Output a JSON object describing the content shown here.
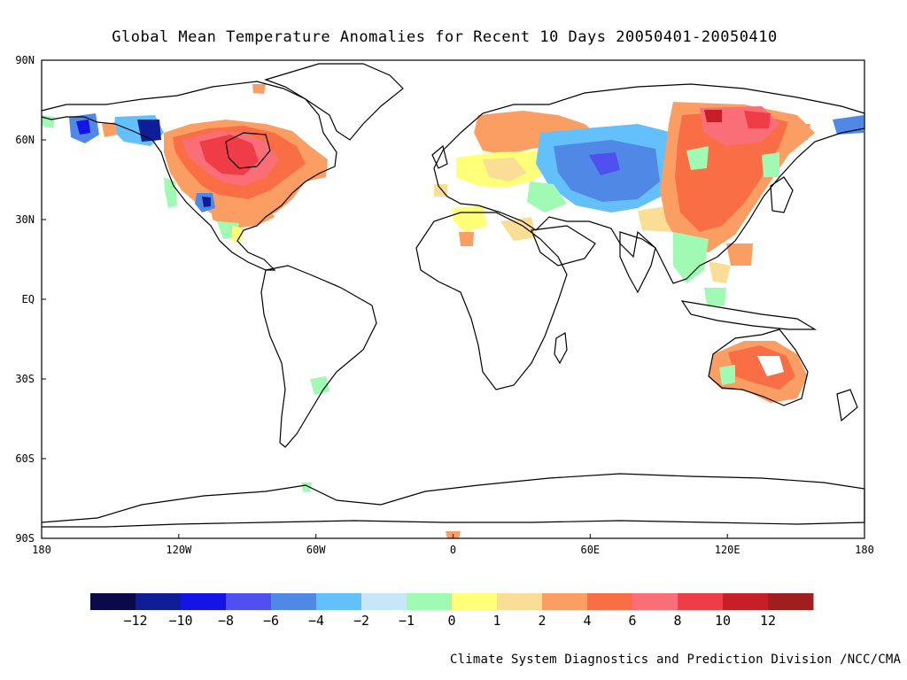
{
  "title": "Global Mean Temperature Anomalies for Recent 10 Days  20050401-20050410",
  "credit": "Climate System Diagnostics and Prediction Division /NCC/CMA",
  "axes": {
    "x_ticks": [
      "180",
      "120W",
      "60W",
      "0",
      "60E",
      "120E",
      "180"
    ],
    "y_ticks": [
      "90N",
      "60N",
      "30N",
      "EQ",
      "30S",
      "60S",
      "90S"
    ]
  },
  "colorbar": {
    "colors": [
      "#0a0a4a",
      "#0f1e96",
      "#1414e6",
      "#5050f0",
      "#5088e6",
      "#64c0fa",
      "#c8e6fa",
      "#a0fab4",
      "#ffff78",
      "#fade96",
      "#fa9e64",
      "#fa6e46",
      "#fa6e78",
      "#f03c46",
      "#c81e28",
      "#a01e1e"
    ],
    "labels": [
      "-12",
      "-10",
      "-8",
      "-6",
      "-4",
      "-2",
      "-1",
      "0",
      "1",
      "2",
      "4",
      "6",
      "8",
      "10",
      "12"
    ]
  },
  "colors": {
    "coastline": "#000000",
    "background": "#ffffff"
  }
}
